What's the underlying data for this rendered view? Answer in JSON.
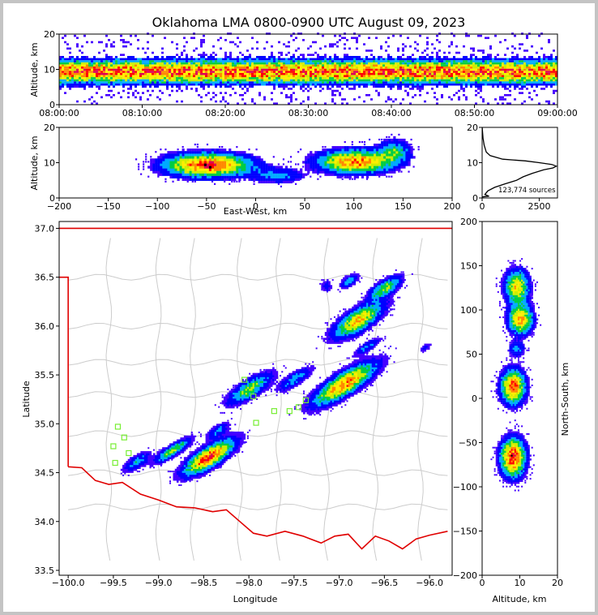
{
  "chart_data": {
    "type": "scatter",
    "title": "Oklahoma LMA 0800-0900 UTC August 09, 2023",
    "colors": {
      "density": [
        "#4400ff",
        "#0000ff",
        "#00aaff",
        "#00cc44",
        "#ccee00",
        "#ffee00",
        "#ff8800",
        "#ff0000",
        "#dd0055"
      ],
      "peak": "#000000",
      "state_border": "#e00000",
      "county": "#cccccc",
      "station": "#77ee33"
    },
    "panels": {
      "time_height": {
        "ylabel": "Altitude, km",
        "xlim": [
          "08:00:00",
          "09:00:00"
        ],
        "ylim": [
          0,
          20
        ],
        "xticks": [
          "08:00:00",
          "08:10:00",
          "08:20:00",
          "08:30:00",
          "08:40:00",
          "08:50:00",
          "09:00:00"
        ],
        "yticks": [
          "0",
          "10",
          "20"
        ],
        "band": {
          "core_km": [
            5,
            12
          ],
          "peak_km": 9
        }
      },
      "ew_height": {
        "xlabel": "East-West, km",
        "ylabel": "Altitude, km",
        "xlim": [
          -200,
          200
        ],
        "ylim": [
          0,
          20
        ],
        "xticks": [
          "-200",
          "-150",
          "-100",
          "-50",
          "0",
          "50",
          "100",
          "150",
          "200"
        ],
        "yticks": [
          "0",
          "10",
          "20"
        ],
        "clusters": [
          {
            "x": -50,
            "alt": 9,
            "spread_x": 40,
            "spread_alt": 3,
            "weight": 1.0
          },
          {
            "x": 100,
            "alt": 10,
            "spread_x": 35,
            "spread_alt": 3,
            "weight": 0.9
          },
          {
            "x": 140,
            "alt": 13,
            "spread_x": 15,
            "spread_alt": 3,
            "weight": 0.4
          },
          {
            "x": 20,
            "alt": 6,
            "spread_x": 25,
            "spread_alt": 2,
            "weight": 0.3
          }
        ]
      },
      "altitude_histogram": {
        "xticks": [
          "0",
          "2500"
        ],
        "yticks": [
          "0",
          "10",
          "20"
        ],
        "xlim": [
          0,
          3300
        ],
        "ylim": [
          0,
          20
        ],
        "annotation": "123,774 sources",
        "profile": [
          [
            0.5,
            300
          ],
          [
            1,
            120
          ],
          [
            2,
            250
          ],
          [
            3,
            550
          ],
          [
            4,
            1000
          ],
          [
            5,
            1500
          ],
          [
            6,
            1800
          ],
          [
            7,
            2200
          ],
          [
            8,
            2700
          ],
          [
            8.5,
            3100
          ],
          [
            9,
            3250
          ],
          [
            9.5,
            3050
          ],
          [
            10,
            2500
          ],
          [
            10.5,
            1900
          ],
          [
            11,
            900
          ],
          [
            12,
            350
          ],
          [
            13,
            180
          ],
          [
            15,
            90
          ],
          [
            17,
            40
          ],
          [
            19,
            15
          ],
          [
            20,
            5
          ]
        ]
      },
      "plan_view": {
        "xlabel": "Longitude",
        "ylabel": "Latitude",
        "xlim": [
          -100.1,
          -95.75
        ],
        "ylim": [
          33.45,
          37.07
        ],
        "xticks": [
          "-100.0",
          "-99.5",
          "-99.0",
          "-98.5",
          "-98.0",
          "-97.5",
          "-97.0",
          "-96.5",
          "-96.0"
        ],
        "yticks": [
          "33.5",
          "34.0",
          "34.5",
          "35.0",
          "35.5",
          "36.0",
          "36.5",
          "37.0"
        ],
        "clusters": [
          {
            "lon": -98.45,
            "lat": 34.65,
            "slon": 0.28,
            "slat": 0.09,
            "weight": 1.0
          },
          {
            "lon": -98.85,
            "lat": 34.72,
            "slon": 0.2,
            "slat": 0.05,
            "weight": 0.6
          },
          {
            "lon": -99.25,
            "lat": 34.6,
            "slon": 0.15,
            "slat": 0.06,
            "weight": 0.35
          },
          {
            "lon": -98.35,
            "lat": 34.92,
            "slon": 0.12,
            "slat": 0.05,
            "weight": 0.3
          },
          {
            "lon": -98.0,
            "lat": 35.35,
            "slon": 0.25,
            "slat": 0.08,
            "weight": 0.55
          },
          {
            "lon": -96.95,
            "lat": 35.4,
            "slon": 0.35,
            "slat": 0.1,
            "weight": 0.9
          },
          {
            "lon": -97.5,
            "lat": 35.45,
            "slon": 0.2,
            "slat": 0.06,
            "weight": 0.35
          },
          {
            "lon": -96.8,
            "lat": 36.05,
            "slon": 0.28,
            "slat": 0.1,
            "weight": 0.75
          },
          {
            "lon": -96.5,
            "lat": 36.38,
            "slon": 0.18,
            "slat": 0.07,
            "weight": 0.55
          },
          {
            "lon": -96.9,
            "lat": 36.45,
            "slon": 0.1,
            "slat": 0.05,
            "weight": 0.35
          },
          {
            "lon": -96.7,
            "lat": 35.78,
            "slon": 0.15,
            "slat": 0.04,
            "weight": 0.3
          },
          {
            "lon": -96.05,
            "lat": 35.77,
            "slon": 0.06,
            "slat": 0.03,
            "weight": 0.2
          },
          {
            "lon": -97.15,
            "lat": 36.4,
            "slon": 0.06,
            "slat": 0.06,
            "weight": 0.2
          }
        ],
        "stations": [
          [
            -99.45,
            34.97
          ],
          [
            -99.5,
            34.77
          ],
          [
            -99.38,
            34.86
          ],
          [
            -99.48,
            34.6
          ],
          [
            -99.33,
            34.7
          ],
          [
            -98.05,
            35.45
          ],
          [
            -97.92,
            35.01
          ],
          [
            -97.72,
            35.13
          ],
          [
            -97.55,
            35.13
          ],
          [
            -97.45,
            35.17
          ],
          [
            -97.37,
            35.24
          ],
          [
            -97.95,
            35.28
          ]
        ]
      },
      "ns_height": {
        "xlabel": "Altitude, km",
        "ylabel": "North-South, km",
        "xlim": [
          0,
          20
        ],
        "ylim": [
          -200,
          200
        ],
        "xticks": [
          "0",
          "10",
          "20"
        ],
        "yticks": [
          "-200",
          "-150",
          "-100",
          "-50",
          "0",
          "50",
          "100",
          "150",
          "200"
        ],
        "clusters": [
          {
            "y": 125,
            "alt": 9,
            "spread_y": 18,
            "spread_alt": 3,
            "weight": 0.7
          },
          {
            "y": 88,
            "alt": 10,
            "spread_y": 15,
            "spread_alt": 3,
            "weight": 0.8
          },
          {
            "y": 55,
            "alt": 9,
            "spread_y": 8,
            "spread_alt": 2,
            "weight": 0.3
          },
          {
            "y": 12,
            "alt": 8,
            "spread_y": 18,
            "spread_alt": 3,
            "weight": 0.9
          },
          {
            "y": -68,
            "alt": 8,
            "spread_y": 20,
            "spread_alt": 3,
            "weight": 1.0
          }
        ]
      }
    }
  }
}
